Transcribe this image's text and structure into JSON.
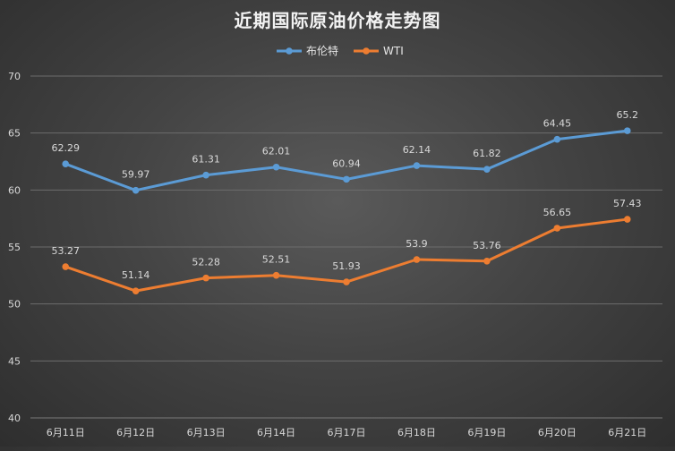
{
  "chart_data": {
    "type": "line",
    "title": "近期国际原油价格走势图",
    "xlabel": "",
    "ylabel": "",
    "categories": [
      "6月11日",
      "6月12日",
      "6月13日",
      "6月14日",
      "6月17日",
      "6月18日",
      "6月19日",
      "6月20日",
      "6月21日"
    ],
    "ylim": [
      40,
      70
    ],
    "yticks": [
      40,
      45,
      50,
      55,
      60,
      65,
      70
    ],
    "grid": true,
    "legend_position": "top-center",
    "series": [
      {
        "name": "布伦特",
        "color": "#5b9bd5",
        "values": [
          62.29,
          59.97,
          61.31,
          62.01,
          60.94,
          62.14,
          61.82,
          64.45,
          65.2
        ],
        "labels": [
          "62.29",
          "59.97",
          "61.31",
          "62.01",
          "60.94",
          "62.14",
          "61.82",
          "64.45",
          "65.2"
        ]
      },
      {
        "name": "WTI",
        "color": "#ed7d31",
        "values": [
          53.27,
          51.14,
          52.28,
          52.51,
          51.93,
          53.9,
          53.76,
          56.65,
          57.43
        ],
        "labels": [
          "53.27",
          "51.14",
          "52.28",
          "52.51",
          "51.93",
          "53.9",
          "53.76",
          "56.65",
          "57.43"
        ]
      }
    ]
  }
}
